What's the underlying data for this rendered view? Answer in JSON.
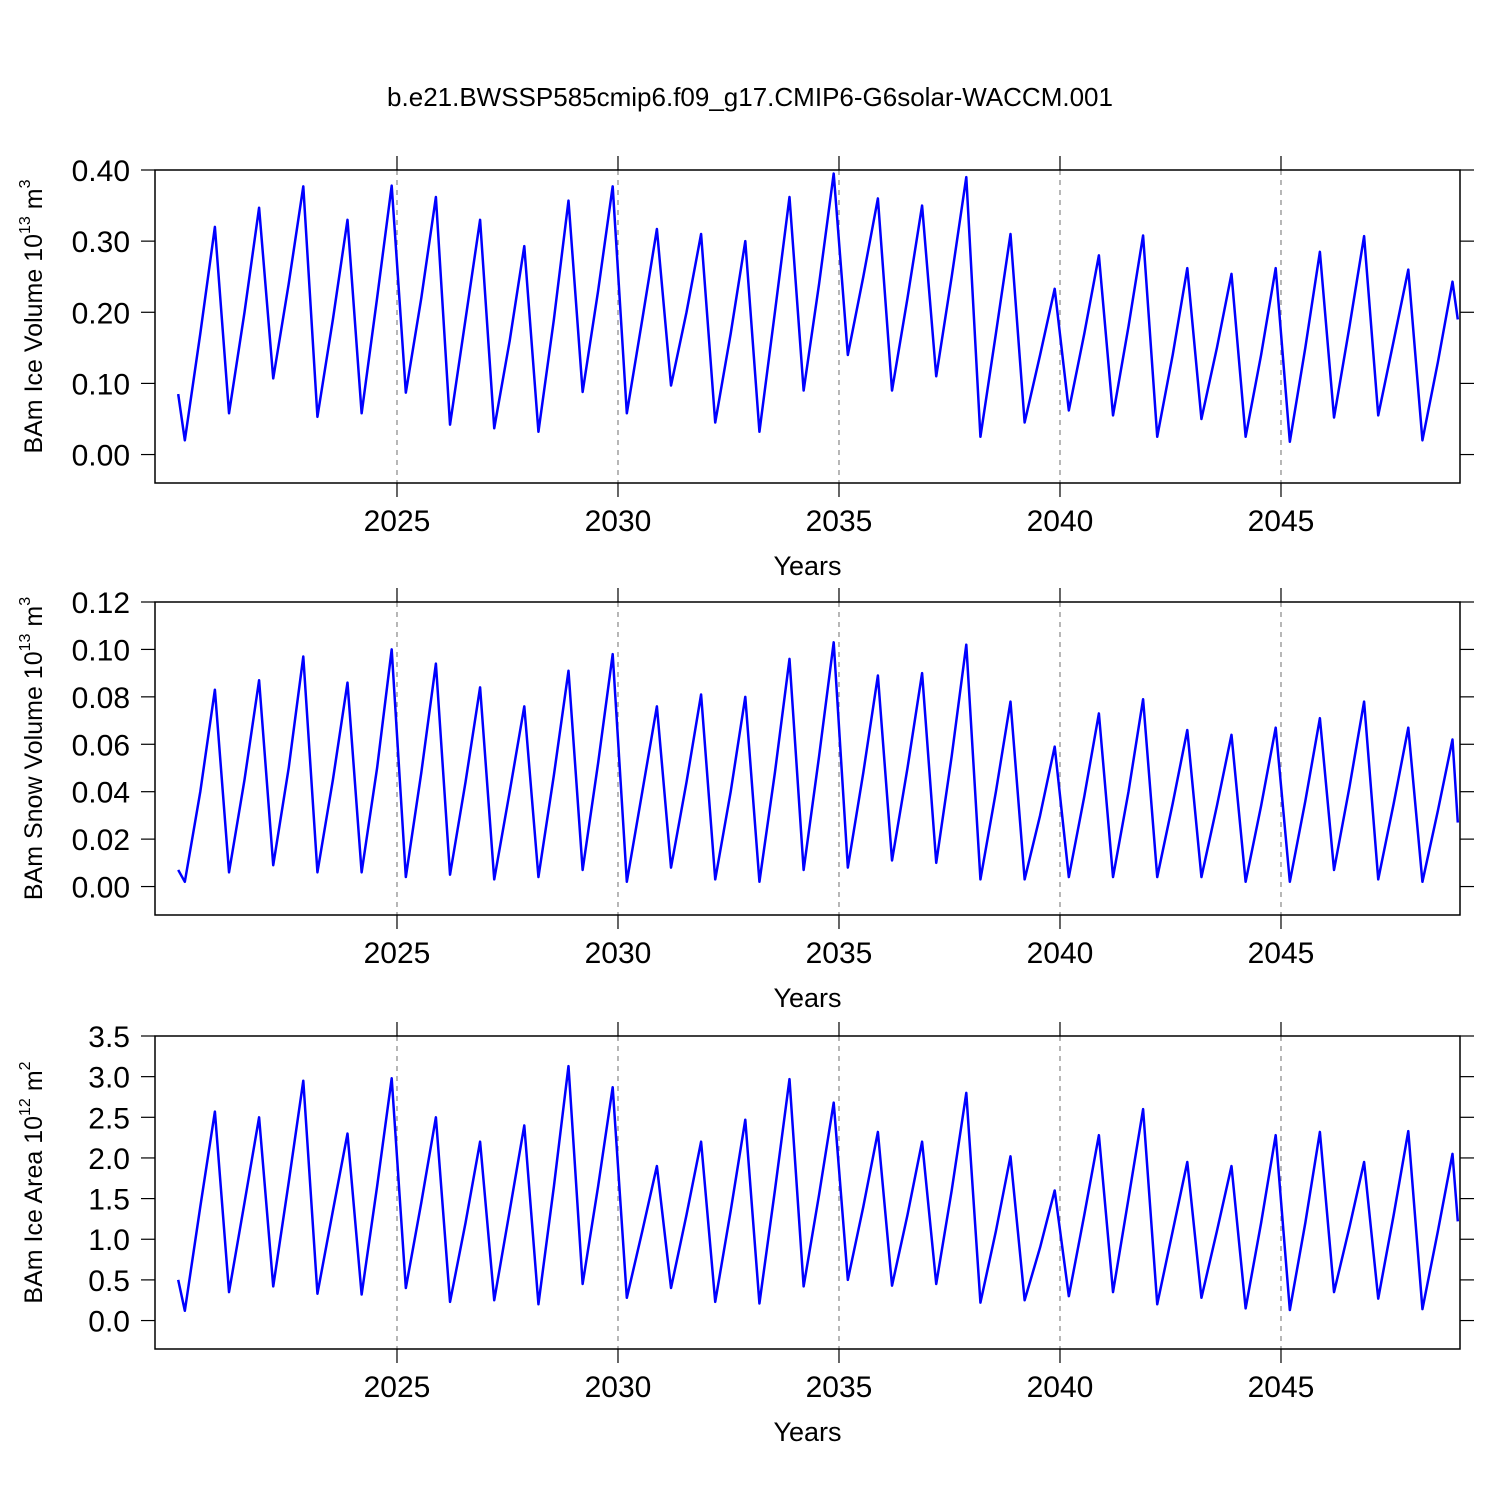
{
  "title": "b.e21.BWSSP585cmip6.f09_g17.CMIP6-G6solar-WACCM.001",
  "chart_data": [
    {
      "type": "line",
      "xlabel": "Years",
      "ylabel": [
        "BAm Ice Volume 10",
        "13",
        "m",
        "3"
      ],
      "xlim": [
        2019.525,
        2049.05
      ],
      "xticks": [
        2025,
        2030,
        2035,
        2040,
        2045
      ],
      "ylim": [
        -0.04,
        0.4
      ],
      "yticks": [
        {
          "value": 0,
          "label": "0.00"
        },
        {
          "value": 0.1,
          "label": "0.10"
        },
        {
          "value": 0.2,
          "label": "0.20"
        },
        {
          "value": 0.3,
          "label": "0.30"
        },
        {
          "value": 0.4,
          "label": "0.40"
        }
      ],
      "grid": true,
      "color": "#0000ff",
      "x": [
        2020.05,
        2020.2,
        2020.55,
        2020.88,
        2021.2,
        2021.55,
        2021.88,
        2022.2,
        2022.55,
        2022.88,
        2023.2,
        2023.55,
        2023.88,
        2024.2,
        2024.55,
        2024.88,
        2025.2,
        2025.55,
        2025.88,
        2026.2,
        2026.55,
        2026.88,
        2027.2,
        2027.55,
        2027.88,
        2028.2,
        2028.55,
        2028.88,
        2029.2,
        2029.55,
        2029.88,
        2030.2,
        2030.55,
        2030.88,
        2031.2,
        2031.55,
        2031.88,
        2032.2,
        2032.55,
        2032.88,
        2033.2,
        2033.55,
        2033.88,
        2034.2,
        2034.55,
        2034.88,
        2035.2,
        2035.55,
        2035.88,
        2036.2,
        2036.55,
        2036.88,
        2037.2,
        2037.55,
        2037.88,
        2038.2,
        2038.55,
        2038.88,
        2039.2,
        2039.55,
        2039.88,
        2040.2,
        2040.55,
        2040.88,
        2041.2,
        2041.55,
        2041.88,
        2042.2,
        2042.55,
        2042.88,
        2043.2,
        2043.55,
        2043.88,
        2044.2,
        2044.55,
        2044.88,
        2045.2,
        2045.55,
        2045.88,
        2046.2,
        2046.55,
        2046.88,
        2047.2,
        2047.55,
        2047.88,
        2048.2,
        2048.55,
        2048.88,
        2049.0
      ],
      "values": [
        0.085,
        0.02,
        0.17,
        0.32,
        0.058,
        0.2,
        0.347,
        0.107,
        0.24,
        0.377,
        0.053,
        0.19,
        0.33,
        0.058,
        0.22,
        0.378,
        0.087,
        0.22,
        0.362,
        0.042,
        0.19,
        0.33,
        0.037,
        0.16,
        0.293,
        0.032,
        0.19,
        0.357,
        0.088,
        0.23,
        0.377,
        0.058,
        0.19,
        0.317,
        0.097,
        0.2,
        0.31,
        0.045,
        0.17,
        0.3,
        0.032,
        0.2,
        0.362,
        0.09,
        0.24,
        0.395,
        0.14,
        0.25,
        0.36,
        0.09,
        0.22,
        0.35,
        0.11,
        0.25,
        0.39,
        0.025,
        0.17,
        0.31,
        0.045,
        0.14,
        0.233,
        0.062,
        0.17,
        0.28,
        0.055,
        0.18,
        0.308,
        0.025,
        0.14,
        0.262,
        0.05,
        0.15,
        0.254,
        0.025,
        0.14,
        0.262,
        0.018,
        0.15,
        0.285,
        0.052,
        0.18,
        0.307,
        0.055,
        0.16,
        0.26,
        0.02,
        0.13,
        0.243,
        0.19
      ]
    },
    {
      "type": "line",
      "xlabel": "Years",
      "ylabel": [
        "BAm Snow Volume 10",
        "13",
        "m",
        "3"
      ],
      "xlim": [
        2019.525,
        2049.05
      ],
      "xticks": [
        2025,
        2030,
        2035,
        2040,
        2045
      ],
      "ylim": [
        -0.012,
        0.12
      ],
      "yticks": [
        {
          "value": 0,
          "label": "0.00"
        },
        {
          "value": 0.02,
          "label": "0.02"
        },
        {
          "value": 0.04,
          "label": "0.04"
        },
        {
          "value": 0.06,
          "label": "0.06"
        },
        {
          "value": 0.08,
          "label": "0.08"
        },
        {
          "value": 0.1,
          "label": "0.10"
        },
        {
          "value": 0.12,
          "label": "0.12"
        }
      ],
      "grid": true,
      "color": "#0000ff",
      "x": [
        2020.05,
        2020.2,
        2020.55,
        2020.88,
        2021.2,
        2021.55,
        2021.88,
        2022.2,
        2022.55,
        2022.88,
        2023.2,
        2023.55,
        2023.88,
        2024.2,
        2024.55,
        2024.88,
        2025.2,
        2025.55,
        2025.88,
        2026.2,
        2026.55,
        2026.88,
        2027.2,
        2027.55,
        2027.88,
        2028.2,
        2028.55,
        2028.88,
        2029.2,
        2029.55,
        2029.88,
        2030.2,
        2030.55,
        2030.88,
        2031.2,
        2031.55,
        2031.88,
        2032.2,
        2032.55,
        2032.88,
        2033.2,
        2033.55,
        2033.88,
        2034.2,
        2034.55,
        2034.88,
        2035.2,
        2035.55,
        2035.88,
        2036.2,
        2036.55,
        2036.88,
        2037.2,
        2037.55,
        2037.88,
        2038.2,
        2038.55,
        2038.88,
        2039.2,
        2039.55,
        2039.88,
        2040.2,
        2040.55,
        2040.88,
        2041.2,
        2041.55,
        2041.88,
        2042.2,
        2042.55,
        2042.88,
        2043.2,
        2043.55,
        2043.88,
        2044.2,
        2044.55,
        2044.88,
        2045.2,
        2045.55,
        2045.88,
        2046.2,
        2046.55,
        2046.88,
        2047.2,
        2047.55,
        2047.88,
        2048.2,
        2048.55,
        2048.88,
        2049.0
      ],
      "values": [
        0.007,
        0.002,
        0.04,
        0.083,
        0.006,
        0.045,
        0.087,
        0.009,
        0.05,
        0.097,
        0.006,
        0.045,
        0.086,
        0.006,
        0.05,
        0.1,
        0.004,
        0.048,
        0.094,
        0.005,
        0.044,
        0.084,
        0.003,
        0.04,
        0.076,
        0.004,
        0.047,
        0.091,
        0.007,
        0.052,
        0.098,
        0.002,
        0.04,
        0.076,
        0.008,
        0.044,
        0.081,
        0.003,
        0.04,
        0.08,
        0.002,
        0.048,
        0.096,
        0.007,
        0.055,
        0.103,
        0.008,
        0.048,
        0.089,
        0.011,
        0.05,
        0.09,
        0.01,
        0.055,
        0.102,
        0.003,
        0.04,
        0.078,
        0.003,
        0.03,
        0.059,
        0.004,
        0.038,
        0.073,
        0.004,
        0.04,
        0.079,
        0.004,
        0.035,
        0.066,
        0.004,
        0.034,
        0.064,
        0.002,
        0.034,
        0.067,
        0.002,
        0.036,
        0.071,
        0.007,
        0.042,
        0.078,
        0.003,
        0.035,
        0.067,
        0.002,
        0.032,
        0.062,
        0.027
      ]
    },
    {
      "type": "line",
      "xlabel": "Years",
      "ylabel": [
        "BAm Ice Area 10",
        "12",
        "m",
        "2"
      ],
      "xlim": [
        2019.525,
        2049.05
      ],
      "xticks": [
        2025,
        2030,
        2035,
        2040,
        2045
      ],
      "ylim": [
        -0.35,
        3.5
      ],
      "yticks": [
        {
          "value": 0,
          "label": "0.0"
        },
        0.5,
        {
          "value": 1,
          "label": "1.0"
        },
        1.5,
        {
          "value": 2,
          "label": "2.0"
        },
        2.5,
        {
          "value": 3,
          "label": "3.0"
        },
        3.5
      ],
      "grid": true,
      "color": "#0000ff",
      "x": [
        2020.05,
        2020.2,
        2020.55,
        2020.88,
        2021.2,
        2021.55,
        2021.88,
        2022.2,
        2022.55,
        2022.88,
        2023.2,
        2023.55,
        2023.88,
        2024.2,
        2024.55,
        2024.88,
        2025.2,
        2025.55,
        2025.88,
        2026.2,
        2026.55,
        2026.88,
        2027.2,
        2027.55,
        2027.88,
        2028.2,
        2028.55,
        2028.88,
        2029.2,
        2029.55,
        2029.88,
        2030.2,
        2030.55,
        2030.88,
        2031.2,
        2031.55,
        2031.88,
        2032.2,
        2032.55,
        2032.88,
        2033.2,
        2033.55,
        2033.88,
        2034.2,
        2034.55,
        2034.88,
        2035.2,
        2035.55,
        2035.88,
        2036.2,
        2036.55,
        2036.88,
        2037.2,
        2037.55,
        2037.88,
        2038.2,
        2038.55,
        2038.88,
        2039.2,
        2039.55,
        2039.88,
        2040.2,
        2040.55,
        2040.88,
        2041.2,
        2041.55,
        2041.88,
        2042.2,
        2042.55,
        2042.88,
        2043.2,
        2043.55,
        2043.88,
        2044.2,
        2044.55,
        2044.88,
        2045.2,
        2045.55,
        2045.88,
        2046.2,
        2046.55,
        2046.88,
        2047.2,
        2047.55,
        2047.88,
        2048.2,
        2048.55,
        2048.88,
        2049.0
      ],
      "values": [
        0.5,
        0.12,
        1.4,
        2.57,
        0.35,
        1.45,
        2.5,
        0.42,
        1.7,
        2.95,
        0.33,
        1.35,
        2.3,
        0.32,
        1.65,
        2.98,
        0.4,
        1.45,
        2.5,
        0.23,
        1.2,
        2.2,
        0.25,
        1.35,
        2.4,
        0.2,
        1.65,
        3.13,
        0.45,
        1.65,
        2.87,
        0.28,
        1.1,
        1.9,
        0.4,
        1.3,
        2.2,
        0.23,
        1.35,
        2.47,
        0.21,
        1.6,
        2.97,
        0.42,
        1.55,
        2.68,
        0.5,
        1.4,
        2.32,
        0.43,
        1.3,
        2.2,
        0.45,
        1.6,
        2.8,
        0.22,
        1.1,
        2.02,
        0.25,
        0.9,
        1.6,
        0.3,
        1.3,
        2.28,
        0.35,
        1.5,
        2.6,
        0.2,
        1.1,
        1.95,
        0.28,
        1.1,
        1.9,
        0.15,
        1.2,
        2.28,
        0.13,
        1.2,
        2.32,
        0.35,
        1.15,
        1.95,
        0.27,
        1.3,
        2.33,
        0.14,
        1.1,
        2.05,
        1.22
      ]
    }
  ]
}
